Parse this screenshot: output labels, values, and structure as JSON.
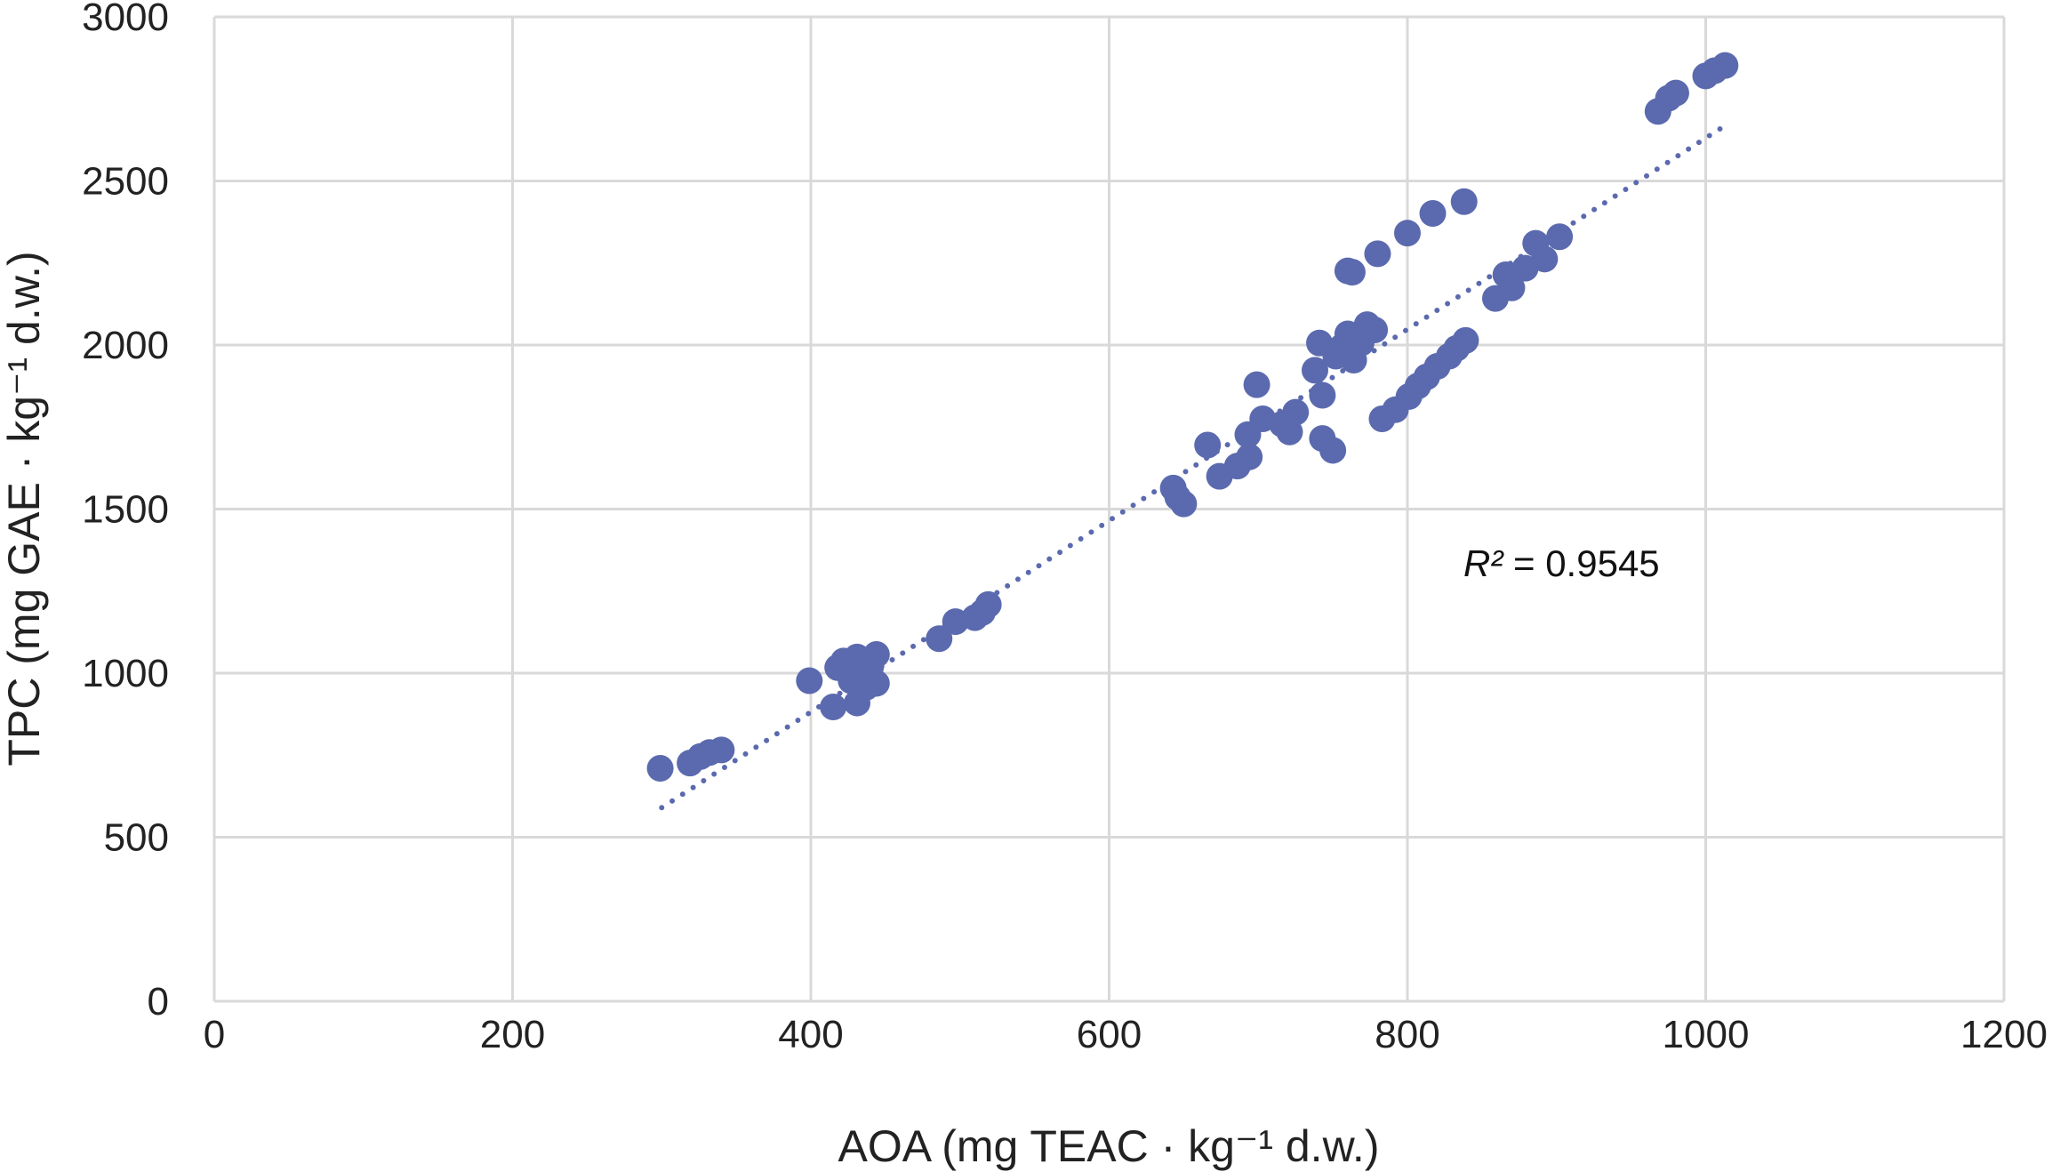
{
  "chart_data": {
    "type": "scatter",
    "title": "",
    "xlabel": "AOA (mg TEAC · kg⁻¹ d.w.)",
    "ylabel": "TPC (mg GAE · kg⁻¹ d.w.)",
    "xlim": [
      0,
      1200
    ],
    "ylim": [
      0,
      3000
    ],
    "xticks": [
      "0",
      "200",
      "400",
      "600",
      "800",
      "1000",
      "1200"
    ],
    "yticks": [
      "0",
      "500",
      "1000",
      "1500",
      "2000",
      "2500",
      "3000"
    ],
    "grid": true,
    "legend": "none",
    "marker_color": "#5b6aae",
    "annotation": {
      "prefix": "R²",
      "text": " = 0.9545"
    },
    "trendline": {
      "type": "linear",
      "style": "dotted",
      "x": [
        300,
        1010
      ],
      "y": [
        590,
        2660
      ]
    },
    "points": [
      [
        299,
        710
      ],
      [
        319,
        726
      ],
      [
        326,
        746
      ],
      [
        332,
        758
      ],
      [
        340,
        766
      ],
      [
        399,
        977
      ],
      [
        418,
        1017
      ],
      [
        422,
        1037
      ],
      [
        431,
        1049
      ],
      [
        440,
        1017
      ],
      [
        444,
        1057
      ],
      [
        415,
        897
      ],
      [
        431,
        909
      ],
      [
        437,
        957
      ],
      [
        444,
        969
      ],
      [
        427,
        977
      ],
      [
        486,
        1105
      ],
      [
        497,
        1157
      ],
      [
        510,
        1169
      ],
      [
        519,
        1209
      ],
      [
        515,
        1185
      ],
      [
        643,
        1564
      ],
      [
        646,
        1536
      ],
      [
        650,
        1516
      ],
      [
        666,
        1695
      ],
      [
        674,
        1600
      ],
      [
        686,
        1631
      ],
      [
        694,
        1659
      ],
      [
        693,
        1727
      ],
      [
        699,
        1879
      ],
      [
        703,
        1775
      ],
      [
        716,
        1759
      ],
      [
        721,
        1735
      ],
      [
        725,
        1795
      ],
      [
        741,
        2006
      ],
      [
        738,
        1923
      ],
      [
        743,
        1847
      ],
      [
        743,
        1715
      ],
      [
        750,
        1679
      ],
      [
        752,
        1966
      ],
      [
        756,
        1994
      ],
      [
        760,
        2034
      ],
      [
        769,
        2006
      ],
      [
        773,
        2062
      ],
      [
        778,
        2046
      ],
      [
        764,
        1954
      ],
      [
        760,
        2226
      ],
      [
        763,
        2222
      ],
      [
        780,
        2278
      ],
      [
        800,
        2341
      ],
      [
        817,
        2401
      ],
      [
        838,
        2437
      ],
      [
        783,
        1775
      ],
      [
        792,
        1803
      ],
      [
        801,
        1843
      ],
      [
        807,
        1875
      ],
      [
        813,
        1903
      ],
      [
        820,
        1935
      ],
      [
        828,
        1966
      ],
      [
        833,
        1990
      ],
      [
        839,
        2014
      ],
      [
        859,
        2142
      ],
      [
        866,
        2214
      ],
      [
        870,
        2174
      ],
      [
        879,
        2234
      ],
      [
        886,
        2310
      ],
      [
        892,
        2262
      ],
      [
        902,
        2330
      ],
      [
        968,
        2712
      ],
      [
        975,
        2752
      ],
      [
        980,
        2768
      ],
      [
        1000,
        2820
      ],
      [
        1006,
        2836
      ],
      [
        1013,
        2852
      ]
    ]
  }
}
